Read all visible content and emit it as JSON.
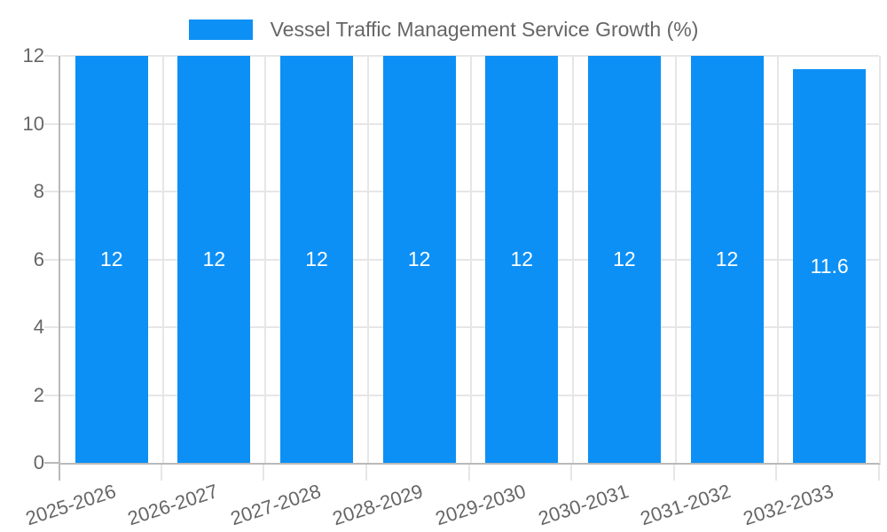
{
  "legend": {
    "label": "Vessel Traffic Management Service Growth (%)"
  },
  "chart_data": {
    "type": "bar",
    "title": "Vessel Traffic Management Service Growth (%)",
    "categories": [
      "2025-2026",
      "2026-2027",
      "2027-2028",
      "2028-2029",
      "2029-2030",
      "2030-2031",
      "2031-2032",
      "2032-2033"
    ],
    "values": [
      12,
      12,
      12,
      12,
      12,
      12,
      12,
      11.6
    ],
    "bar_labels": [
      "12",
      "12",
      "12",
      "12",
      "12",
      "12",
      "12",
      "11.6"
    ],
    "xlabel": "",
    "ylabel": "",
    "ylim": [
      0,
      12
    ],
    "yticks": [
      0,
      2,
      4,
      6,
      8,
      10,
      12
    ],
    "grid": true,
    "legend_position": "top-center",
    "colors": {
      "bar": "#0d90f5",
      "bar_label": "#ffffff",
      "text": "#666666",
      "grid": "#e6e6e6",
      "axis": "#b9b9b9",
      "background": "#ffffff"
    }
  }
}
